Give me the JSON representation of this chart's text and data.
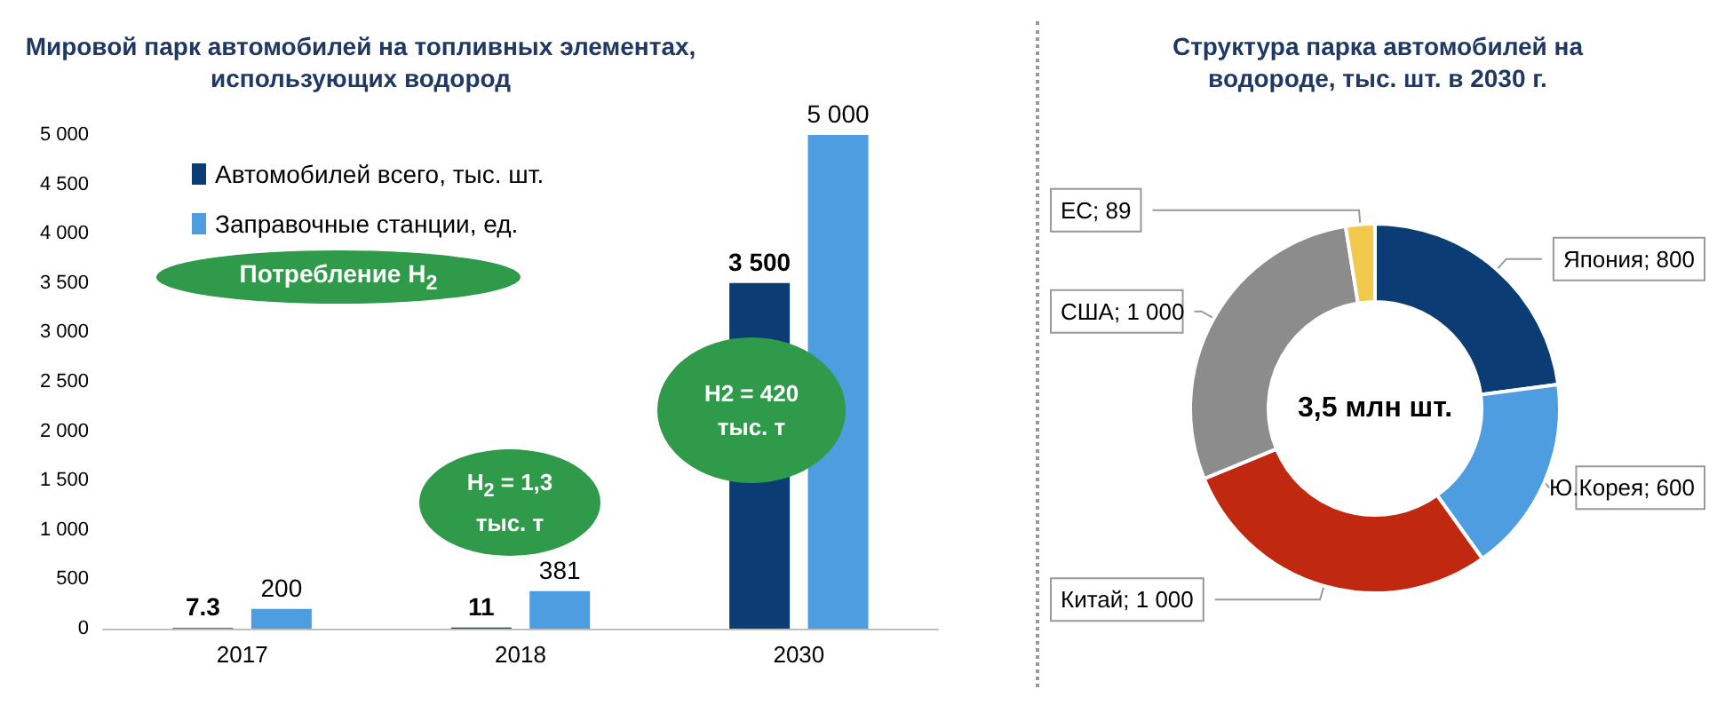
{
  "chart_data": [
    {
      "type": "bar",
      "title": "Мировой парк автомобилей на топливных элементах,\nиспользующих водород",
      "categories": [
        "2017",
        "2018",
        "2030"
      ],
      "series": [
        {
          "name": "Автомобилей всего, тыс. шт.",
          "color": "#0b3c73",
          "values": [
            7.3,
            11,
            3500
          ],
          "value_labels": [
            "7.3",
            "11",
            "3 500"
          ]
        },
        {
          "name": "Заправочные станции, ед.",
          "color": "#4d9de0",
          "values": [
            200,
            381,
            5000
          ],
          "value_labels": [
            "200",
            "381",
            "5 000"
          ]
        }
      ],
      "ylim": [
        0,
        5000
      ],
      "yticks": [
        {
          "value": 0,
          "label": "0"
        },
        {
          "value": 500,
          "label": "500"
        },
        {
          "value": 1000,
          "label": "1 000"
        },
        {
          "value": 1500,
          "label": "1 500"
        },
        {
          "value": 2000,
          "label": "2 000"
        },
        {
          "value": 2500,
          "label": "2 500"
        },
        {
          "value": 3000,
          "label": "3 000"
        },
        {
          "value": 3500,
          "label": "3 500"
        },
        {
          "value": 4000,
          "label": "4 000"
        },
        {
          "value": 4500,
          "label": "4 500"
        },
        {
          "value": 5000,
          "label": "5 000"
        }
      ],
      "legend": "top left",
      "annotations": [
        "Потребление H$_{2}$",
        "H$_{2}$ = 1,3\nтыс. т",
        "H2 = 420\nтыс. т"
      ]
    },
    {
      "type": "donut",
      "title": "Структура парка автомобилей на\nводороде, тыс. шт. в 2030 г.",
      "categories": [
        "Япония",
        "Ю.Корея",
        "Китай",
        "США",
        "ЕС"
      ],
      "values": [
        800,
        600,
        1000,
        1000,
        89
      ],
      "value_labels": [
        "800",
        "600",
        "1 000",
        "1 000",
        "89"
      ],
      "colors": [
        "#0b3c73",
        "#4d9de0",
        "#c0280f",
        "#8c8c8c",
        "#f2c94c"
      ],
      "annotations": [
        "3,5 млн шт."
      ]
    }
  ]
}
